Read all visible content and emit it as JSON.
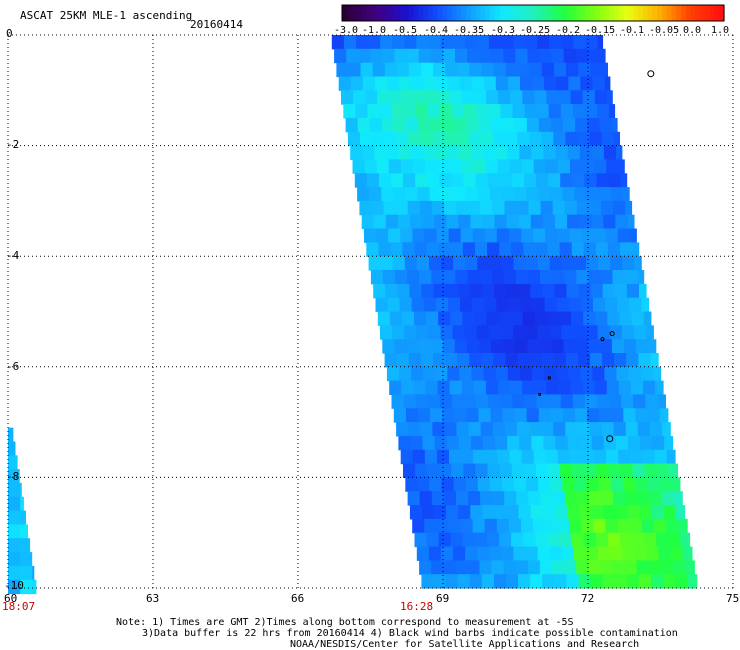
{
  "header": {
    "title": "ASCAT 25KM MLE-1 ascending",
    "date": "20160414"
  },
  "colorbar": {
    "labels": [
      "-3.0",
      "-1.0",
      "-0.5",
      "-0.4",
      "-0.35",
      "-0.3",
      "-0.25",
      "-0.2",
      "-0.15",
      "-0.1",
      "-0.05",
      "0.0",
      "1.0"
    ],
    "colors": [
      "#2a0033",
      "#400080",
      "#1a10d0",
      "#1050ff",
      "#10a0ff",
      "#10e8ff",
      "#20f0c0",
      "#20ff40",
      "#80ff10",
      "#e8ff10",
      "#ffb000",
      "#ff4000",
      "#ff1010"
    ]
  },
  "axes": {
    "lon_ticks": [
      "60",
      "63",
      "66",
      "69",
      "72",
      "75"
    ],
    "lat_ticks": [
      "0",
      "-2",
      "-4",
      "-6",
      "-8",
      "-10"
    ],
    "lon_range": [
      60,
      75
    ],
    "lat_range": [
      -10,
      0
    ],
    "grid": "dotted"
  },
  "times": [
    "18:07",
    "16:28"
  ],
  "notes": [
    "Note: 1) Times are GMT 2)Times along bottom correspond to measurement at -5S",
    "3)Data buffer is 22 hrs from 20160414 4) Black wind barbs indicate possible contamination",
    "NOAA/NESDIS/Center for Satellite Applications and Research"
  ],
  "chart_data": {
    "type": "heatmap",
    "title": "ASCAT 25KM MLE-1 ascending",
    "subtitle": "20160414",
    "xlabel": "",
    "ylabel": "",
    "xlim": [
      60,
      75
    ],
    "ylim": [
      -10,
      0
    ],
    "x_ticks": [
      60,
      63,
      66,
      69,
      72,
      75
    ],
    "y_ticks": [
      0,
      -2,
      -4,
      -6,
      -8,
      -10
    ],
    "colorbar_labels": [
      "-3.0",
      "-1.0",
      "-0.5",
      "-0.4",
      "-0.35",
      "-0.3",
      "-0.25",
      "-0.2",
      "-0.15",
      "-0.1",
      "-0.05",
      "0.0",
      "1.0"
    ],
    "swaths": [
      {
        "lat_top": 0,
        "lat_bottom": -10,
        "lon_left_top": 66.7,
        "lon_right_top": 72.3,
        "lon_left_bottom": 68.6,
        "lon_right_bottom": 74.3,
        "value_range": [
          -0.5,
          -0.15
        ]
      },
      {
        "lat_top": -7.1,
        "lat_bottom": -10,
        "lon_left_top": 60.0,
        "lon_right_top": 60.1,
        "lon_left_bottom": 60.0,
        "lon_right_bottom": 60.6,
        "value_range": [
          -0.35,
          -0.3
        ]
      }
    ],
    "grid": true
  }
}
